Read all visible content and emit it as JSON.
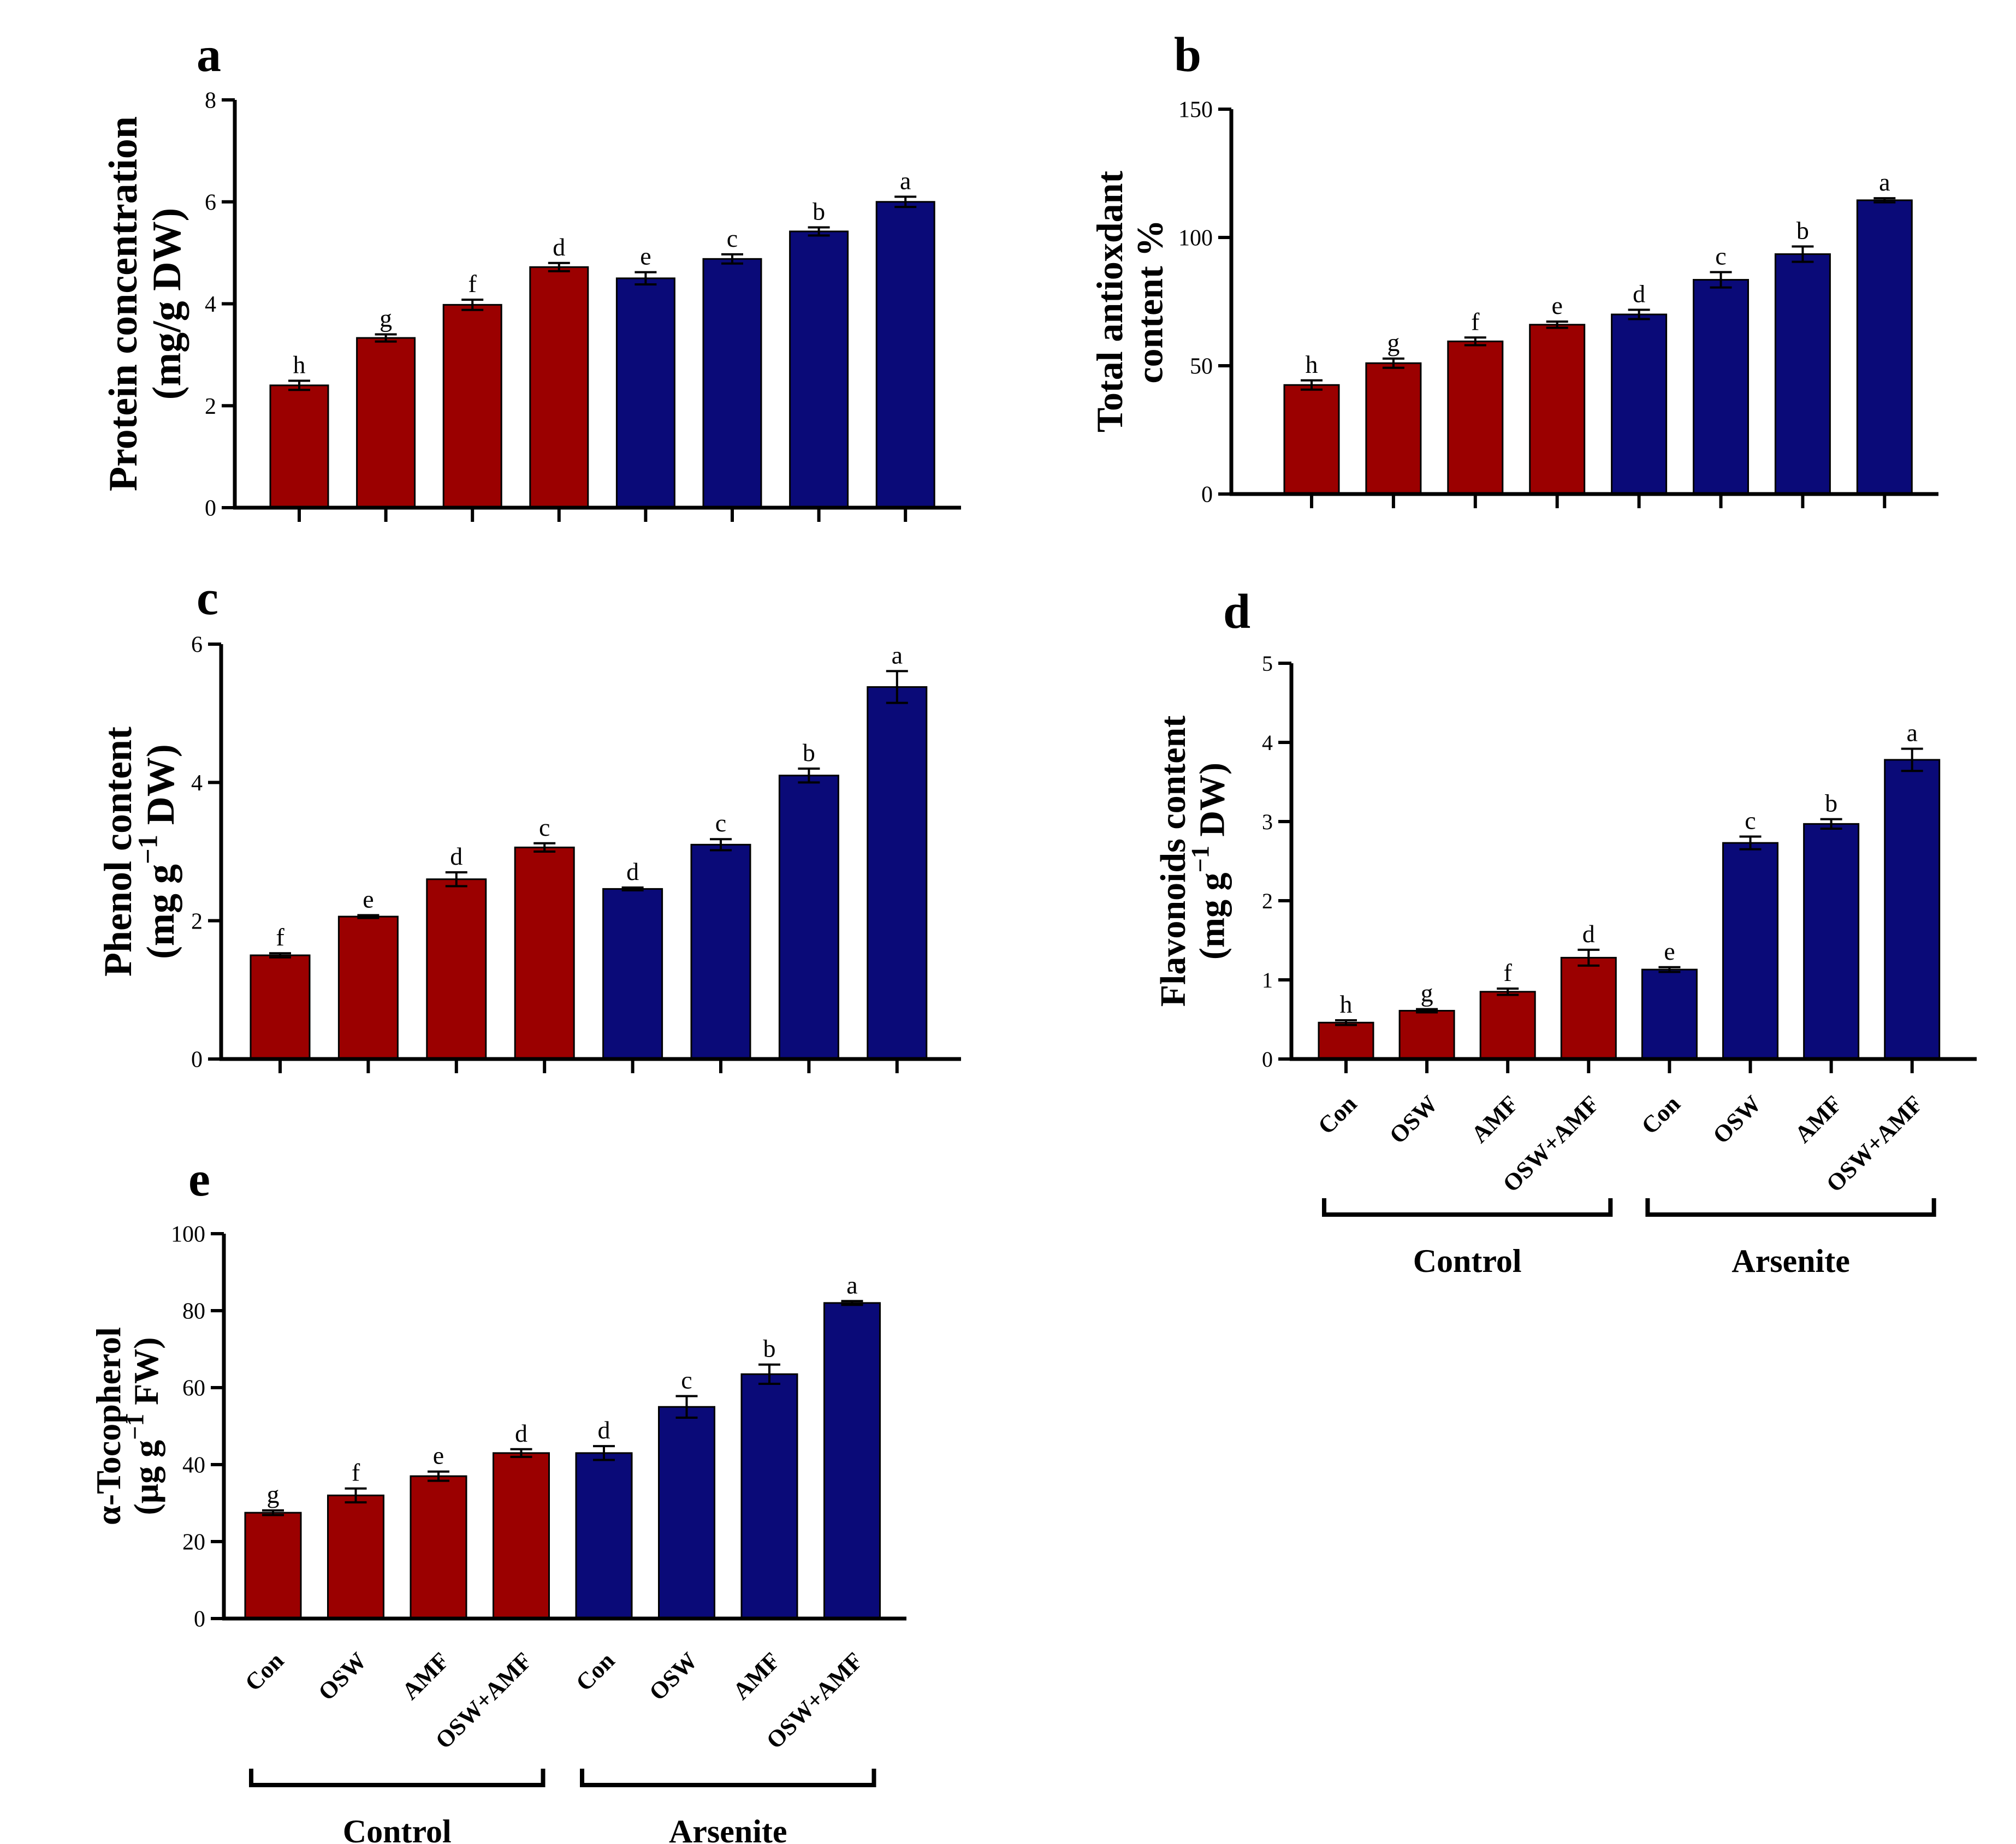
{
  "colors": {
    "control": "#9b0000",
    "arsenite": "#0a0a78",
    "axis": "#000000"
  },
  "categories": [
    "Con",
    "OSW",
    "AMF",
    "OSW+AMF",
    "Con",
    "OSW",
    "AMF",
    "OSW+AMF"
  ],
  "groups": [
    "Control",
    "Arsenite"
  ],
  "chart_data": [
    {
      "panel": "a",
      "type": "bar",
      "ylabel": [
        "Protein concentration",
        "(mg/g DW)"
      ],
      "ylim": [
        0,
        8
      ],
      "yticks": [
        0,
        2,
        4,
        6,
        8
      ],
      "values": [
        2.4,
        3.33,
        3.98,
        4.72,
        4.5,
        4.88,
        5.42,
        6.0
      ],
      "errors": [
        0.09,
        0.07,
        0.1,
        0.08,
        0.12,
        0.09,
        0.08,
        0.1
      ],
      "letters": [
        "h",
        "g",
        "f",
        "d",
        "e",
        "c",
        "b",
        "a"
      ]
    },
    {
      "panel": "b",
      "type": "bar",
      "ylabel": [
        "Total antioxdant",
        "content %"
      ],
      "ylim": [
        0,
        150
      ],
      "yticks": [
        0,
        50,
        100,
        150
      ],
      "values": [
        42.5,
        51,
        59.5,
        66,
        70,
        83.5,
        93.5,
        114.5
      ],
      "errors": [
        1.8,
        1.8,
        1.5,
        1.2,
        1.8,
        3,
        3,
        0.8
      ],
      "letters": [
        "h",
        "g",
        "f",
        "e",
        "d",
        "c",
        "b",
        "a"
      ]
    },
    {
      "panel": "c",
      "type": "bar",
      "ylabel": [
        "Phenol content",
        "(mg g",
        "−1",
        " DW)"
      ],
      "ylim": [
        0,
        6
      ],
      "yticks": [
        0,
        2,
        4,
        6
      ],
      "values": [
        1.5,
        2.06,
        2.6,
        3.06,
        2.46,
        3.1,
        4.1,
        5.38
      ],
      "errors": [
        0.03,
        0.02,
        0.1,
        0.06,
        0.02,
        0.08,
        0.1,
        0.23
      ],
      "letters": [
        "f",
        "e",
        "d",
        "c",
        "d",
        "c",
        "b",
        "a"
      ]
    },
    {
      "panel": "d",
      "type": "bar",
      "ylabel": [
        "Flavonoids content",
        "(mg g",
        "−1",
        " DW)"
      ],
      "ylim": [
        0,
        5
      ],
      "yticks": [
        0,
        1,
        2,
        3,
        4,
        5
      ],
      "values": [
        0.46,
        0.61,
        0.85,
        1.28,
        1.13,
        2.73,
        2.97,
        3.78
      ],
      "errors": [
        0.03,
        0.02,
        0.04,
        0.1,
        0.03,
        0.08,
        0.06,
        0.14
      ],
      "letters": [
        "h",
        "g",
        "f",
        "d",
        "e",
        "c",
        "b",
        "a"
      ]
    },
    {
      "panel": "e",
      "type": "bar",
      "ylabel": [
        "α-Tocopherol",
        "(μg g",
        "−1",
        " FW)"
      ],
      "ylim": [
        0,
        100
      ],
      "yticks": [
        0,
        20,
        40,
        60,
        80,
        100
      ],
      "values": [
        27.5,
        32,
        37,
        43,
        43,
        55,
        63.5,
        82
      ],
      "errors": [
        0.6,
        1.8,
        1.2,
        1,
        1.8,
        2.8,
        2.5,
        0.5
      ],
      "letters": [
        "g",
        "f",
        "e",
        "d",
        "d",
        "c",
        "b",
        "a"
      ]
    }
  ]
}
